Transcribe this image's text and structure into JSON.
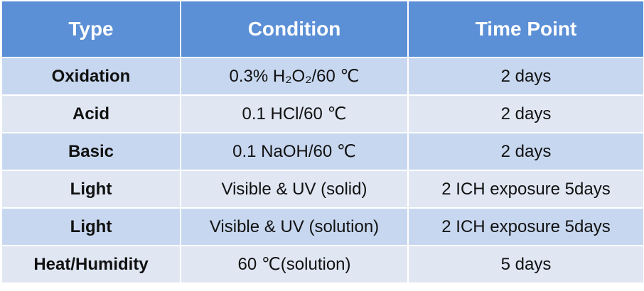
{
  "table": {
    "header": [
      "Type",
      "Condition",
      "Time Point"
    ],
    "rows": [
      [
        "Oxidation",
        "0.3% H₂O₂/60 ℃",
        "2 days"
      ],
      [
        "Acid",
        "0.1 HCl/60 ℃",
        "2 days"
      ],
      [
        "Basic",
        "0.1 NaOH/60 ℃",
        "2 days"
      ],
      [
        "Light",
        "Visible & UV (solid)",
        "2 ICH exposure 5days"
      ],
      [
        "Light",
        "Visible & UV (solution)",
        "2 ICH exposure 5days"
      ],
      [
        "Heat/Humidity",
        "60 ℃(solution)",
        "5 days"
      ]
    ]
  }
}
